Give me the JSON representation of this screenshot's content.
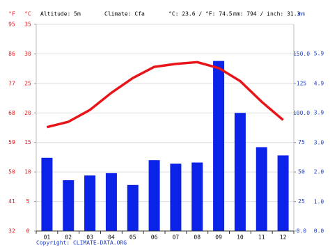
{
  "chart_data": {
    "type": "climate",
    "header": {
      "f_unit": "°F",
      "c_unit": "°C",
      "altitude": "Altitude: 5m",
      "climate": "Climate: Cfa",
      "temperature": "°C: 23.6 / °F: 74.5",
      "precipitation": "mm: 794 / inch: 31.3",
      "mm_unit": "mm"
    },
    "categories": [
      "01",
      "02",
      "03",
      "04",
      "05",
      "06",
      "07",
      "08",
      "09",
      "10",
      "11",
      "12"
    ],
    "series": [
      {
        "type": "bar",
        "axis": "y2",
        "color": "#0b22e8",
        "values": [
          62,
          43,
          47,
          49,
          39,
          60,
          57,
          58,
          144,
          100,
          71,
          64
        ]
      },
      {
        "type": "line",
        "color": "#e8141a",
        "values": [
          17.6,
          18.5,
          20.5,
          23.4,
          25.9,
          27.8,
          28.3,
          28.6,
          27.6,
          25.4,
          21.9,
          18.8
        ]
      }
    ],
    "ylim": [
      0,
      35
    ],
    "yticks": [
      0,
      5,
      10,
      15,
      20,
      25,
      30,
      35
    ],
    "flim": [
      32,
      95
    ],
    "fticks": [
      32,
      41,
      50,
      59,
      68,
      77,
      86,
      95
    ],
    "y2lim": [
      0,
      175
    ],
    "y2ticks": [
      {
        "value": 0,
        "label": "0.0"
      },
      25,
      50,
      75,
      {
        "value": 100,
        "label": "100.0"
      },
      125,
      {
        "value": 150,
        "label": "150.0"
      }
    ],
    "inchlim": [
      0,
      6.89
    ],
    "inchticks": [
      {
        "value": 0,
        "label": "0.0"
      },
      {
        "value": 0.98,
        "label": "1.0"
      },
      {
        "value": 1.97,
        "label": "2.0"
      },
      {
        "value": 2.95,
        "label": "3.0"
      },
      {
        "value": 3.94,
        "label": "3.9"
      },
      {
        "value": 4.92,
        "label": "4.9"
      },
      {
        "value": 5.91,
        "label": "5.9"
      }
    ],
    "grid": true,
    "footer": "Copyright: CLIMATE-DATA.ORG"
  }
}
